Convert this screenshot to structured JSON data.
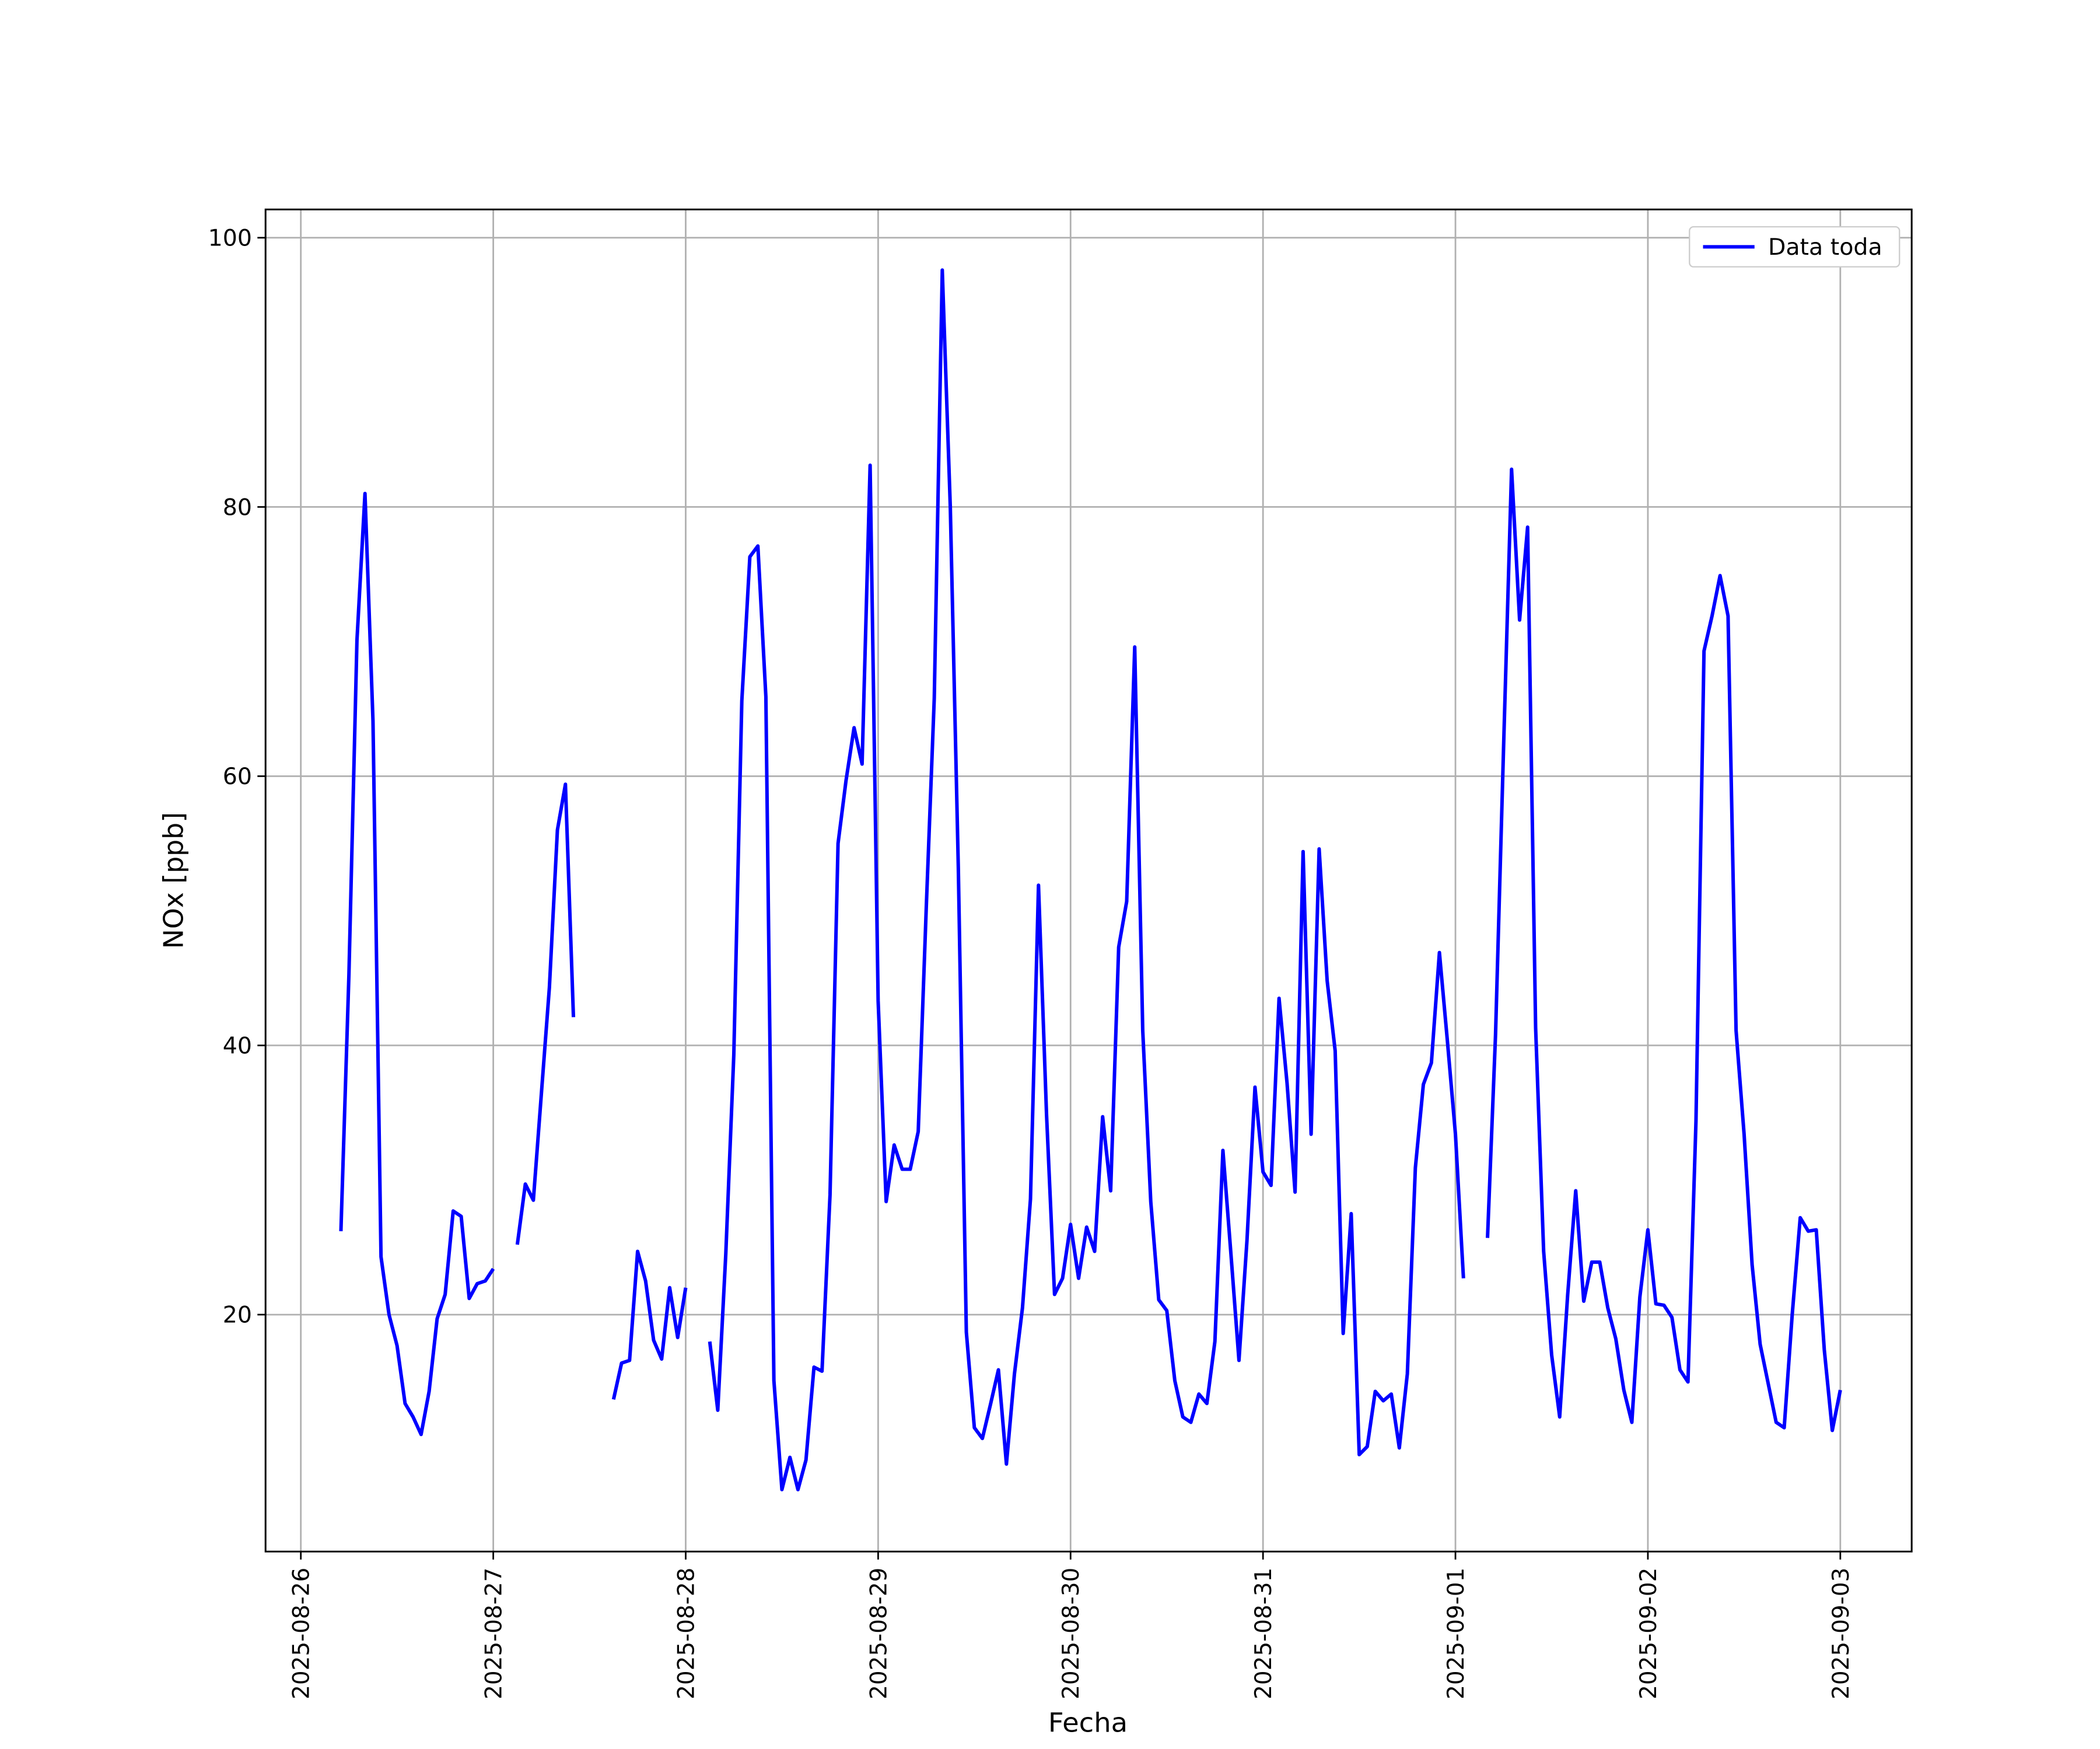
{
  "chart_data": {
    "type": "line",
    "x_label": "Fecha",
    "y_label": "NOx [ppb]",
    "x": [
      5,
      6,
      7,
      8,
      9,
      10,
      11,
      12,
      13,
      14,
      15,
      16,
      17,
      18,
      19,
      20,
      21,
      22,
      23,
      24,
      25,
      26,
      27,
      28,
      29,
      30,
      31,
      32,
      33,
      34,
      35,
      36,
      37,
      38,
      39,
      40,
      41,
      42,
      43,
      44,
      45,
      46,
      47,
      48,
      49,
      50,
      51,
      52,
      53,
      54,
      55,
      56,
      57,
      58,
      59,
      60,
      61,
      62,
      63,
      64,
      65,
      66,
      67,
      68,
      69,
      70,
      71,
      72,
      73,
      74,
      75,
      76,
      77,
      78,
      79,
      80,
      81,
      82,
      83,
      84,
      85,
      86,
      87,
      88,
      89,
      90,
      91,
      92,
      93,
      94,
      95,
      96,
      97,
      98,
      99,
      100,
      101,
      102,
      103,
      104,
      105,
      106,
      107,
      108,
      109,
      110,
      111,
      112,
      113,
      114,
      115,
      116,
      117,
      118,
      119,
      120,
      121,
      122,
      123,
      124,
      125,
      126,
      127,
      128,
      129,
      130,
      131,
      132,
      133,
      134,
      135,
      136,
      137,
      138,
      139,
      140,
      141,
      142,
      143,
      144,
      145,
      146,
      147,
      148,
      149,
      150,
      151,
      152,
      153,
      154,
      155,
      156,
      157,
      158,
      159,
      160,
      161,
      162,
      163,
      164,
      165,
      166,
      167,
      168,
      169,
      170,
      171,
      172,
      173,
      174,
      175,
      176,
      177,
      178,
      179,
      180,
      181,
      182,
      183,
      184,
      185,
      186,
      187,
      188,
      189,
      190,
      191,
      192
    ],
    "series": [
      {
        "name": "Data toda",
        "color": "#0000ff",
        "values": [
          26.2,
          45.3,
          70.1,
          81.0,
          64.1,
          24.3,
          20.0,
          17.7,
          13.4,
          12.4,
          11.1,
          14.3,
          19.7,
          21.5,
          27.7,
          27.3,
          21.2,
          22.3,
          22.5,
          23.4,
          null,
          null,
          25.2,
          29.7,
          28.5,
          36.4,
          44.3,
          56.0,
          59.4,
          42.1,
          null,
          null,
          null,
          null,
          13.7,
          16.4,
          16.6,
          24.7,
          22.5,
          18.1,
          16.7,
          22.0,
          18.3,
          22.0,
          null,
          null,
          18.0,
          12.9,
          24.5,
          39.3,
          65.6,
          76.3,
          77.1,
          65.9,
          15.1,
          7.0,
          9.4,
          7.0,
          9.2,
          16.1,
          15.8,
          28.9,
          55.0,
          59.7,
          63.6,
          60.9,
          83.1,
          43.3,
          28.4,
          32.6,
          30.8,
          30.8,
          33.6,
          50.2,
          65.8,
          97.6,
          80.0,
          53.2,
          18.7,
          11.6,
          10.8,
          13.3,
          15.9,
          8.9,
          15.6,
          20.5,
          28.6,
          51.9,
          34.9,
          21.5,
          22.7,
          26.7,
          22.7,
          26.5,
          24.7,
          34.7,
          29.2,
          47.3,
          50.7,
          69.6,
          41.1,
          28.4,
          21.1,
          20.3,
          15.1,
          12.4,
          12.0,
          14.1,
          13.4,
          18.0,
          32.2,
          24.5,
          16.6,
          25.5,
          36.9,
          30.6,
          29.6,
          43.5,
          37.2,
          29.1,
          54.4,
          33.4,
          54.6,
          44.8,
          39.6,
          18.6,
          27.5,
          9.6,
          10.2,
          14.3,
          13.6,
          14.1,
          10.1,
          15.6,
          30.9,
          37.1,
          38.7,
          46.9,
          40.3,
          33.4,
          22.7,
          null,
          null,
          25.7,
          40.8,
          62.1,
          82.8,
          71.6,
          78.5,
          41.3,
          24.7,
          17.0,
          12.4,
          21.5,
          29.2,
          21.0,
          23.9,
          23.9,
          20.5,
          18.2,
          14.4,
          12.0,
          21.3,
          26.3,
          20.8,
          20.7,
          19.8,
          15.9,
          15.0,
          34.4,
          69.3,
          71.9,
          74.9,
          71.9,
          41.1,
          33.4,
          23.7,
          17.8,
          14.9,
          12.0,
          11.6,
          20.0,
          27.2,
          26.2,
          26.3,
          17.4,
          11.4,
          14.4
        ]
      }
    ],
    "xlim": [
      -4.4,
      200.9
    ],
    "xticks": [
      {
        "value": 0,
        "label": "2025-08-26"
      },
      {
        "value": 24,
        "label": "2025-08-27"
      },
      {
        "value": 48,
        "label": "2025-08-28"
      },
      {
        "value": 72,
        "label": "2025-08-29"
      },
      {
        "value": 96,
        "label": "2025-08-30"
      },
      {
        "value": 120,
        "label": "2025-08-31"
      },
      {
        "value": 144,
        "label": "2025-09-01"
      },
      {
        "value": 168,
        "label": "2025-09-02"
      },
      {
        "value": 192,
        "label": "2025-09-03"
      }
    ],
    "ylim": [
      2.4,
      102.1
    ],
    "yticks": [
      20,
      40,
      60,
      80,
      100
    ],
    "grid": true,
    "legend": "upper right"
  }
}
